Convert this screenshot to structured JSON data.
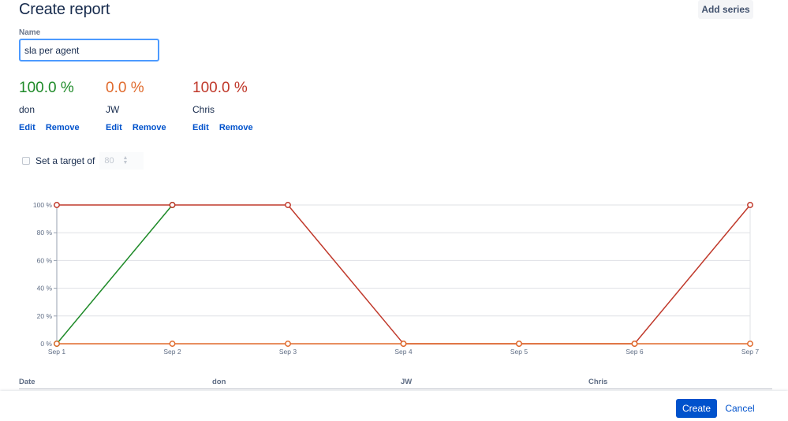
{
  "header": {
    "title": "Create report",
    "add_series_label": "Add series"
  },
  "name_field": {
    "label": "Name",
    "value": "sla per agent"
  },
  "series": [
    {
      "percent": "100.0 %",
      "name": "don",
      "color": "#1e8a28",
      "edit_label": "Edit",
      "remove_label": "Remove"
    },
    {
      "percent": "0.0 %",
      "name": "JW",
      "color": "#e06a2c",
      "edit_label": "Edit",
      "remove_label": "Remove"
    },
    {
      "percent": "100.0 %",
      "name": "Chris",
      "color": "#c0392b",
      "edit_label": "Edit",
      "remove_label": "Remove"
    }
  ],
  "target": {
    "label": "Set a target of",
    "value": "80",
    "unit": "%",
    "checked": false
  },
  "chart_data": {
    "type": "line",
    "x": [
      "Sep 1",
      "Sep 2",
      "Sep 3",
      "Sep 4",
      "Sep 5",
      "Sep 6",
      "Sep 7"
    ],
    "y_ticks": [
      "0 %",
      "20 %",
      "40 %",
      "60 %",
      "80 %",
      "100 %"
    ],
    "ylim": [
      0,
      100
    ],
    "grid": true,
    "series": [
      {
        "name": "don",
        "color": "#1e8a28",
        "values": [
          0,
          100,
          null,
          null,
          null,
          null,
          null
        ]
      },
      {
        "name": "Chris",
        "color": "#c0392b",
        "values": [
          100,
          100,
          100,
          0,
          0,
          0,
          100
        ]
      },
      {
        "name": "JW",
        "color": "#e06a2c",
        "values": [
          0,
          0,
          0,
          0,
          0,
          0,
          0
        ]
      }
    ]
  },
  "table": {
    "columns": [
      "Date",
      "don",
      "JW",
      "Chris"
    ]
  },
  "footer": {
    "create_label": "Create",
    "cancel_label": "Cancel"
  }
}
